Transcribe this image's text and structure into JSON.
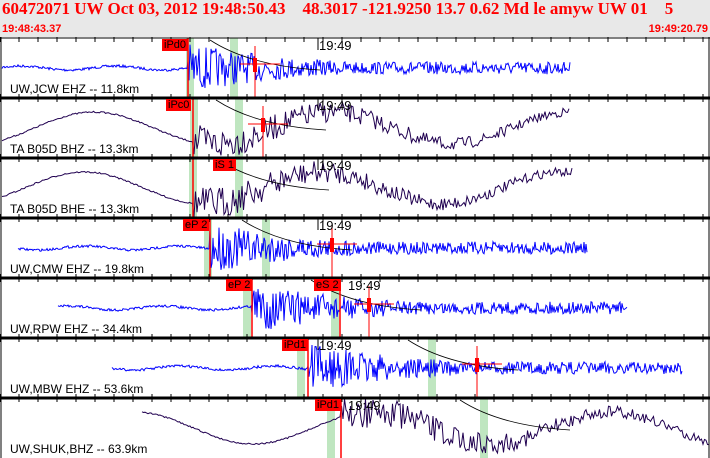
{
  "header": {
    "title": "60472071 UW Oct 03, 2012 19:48:50.43    48.3017 -121.9250 13.7 0.62 Md le amyw UW 01    5",
    "start_time": "19:48:43.37",
    "end_time": "19:49:20.79"
  },
  "minute_mark": "19:49",
  "colors": {
    "blue": "#0000ff",
    "dark": "#200050",
    "pick": "#ff0000",
    "band": "#bfe6c0"
  },
  "channels": [
    {
      "label": "UW,JCW EHZ -- 11.8km",
      "picks": [
        "iPd0"
      ]
    },
    {
      "label": "TA B05D BHZ -- 13.3km",
      "picks": [
        "iPc0"
      ]
    },
    {
      "label": "TA B05D BHE -- 13.3km",
      "picks": [
        "iS 1"
      ]
    },
    {
      "label": "UW,CMW EHZ -- 19.8km",
      "picks": [
        "eP 2"
      ]
    },
    {
      "label": "UW,RPW EHZ -- 34.4km",
      "picks": [
        "eP 2",
        "eS 2"
      ]
    },
    {
      "label": "UW,MBW EHZ -- 53.6km",
      "picks": [
        "iPd1"
      ]
    },
    {
      "label": "UW,SHUK,BHZ -- 63.9km",
      "picks": [
        "iPd1"
      ]
    }
  ]
}
